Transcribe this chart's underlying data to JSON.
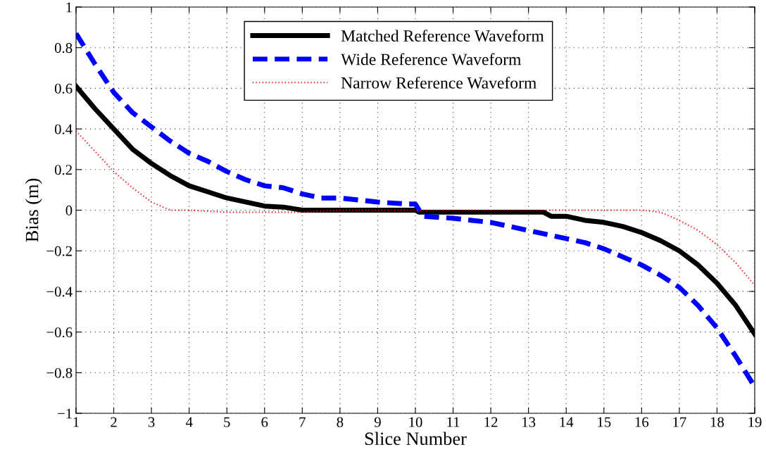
{
  "chart_data": {
    "type": "line",
    "xlabel": "Slice Number",
    "ylabel": "Bias (m)",
    "xlim": [
      1,
      19
    ],
    "xticks": [
      1,
      2,
      3,
      4,
      5,
      6,
      7,
      8,
      9,
      10,
      11,
      12,
      13,
      14,
      15,
      16,
      17,
      18,
      19
    ],
    "ylim": [
      -1,
      1
    ],
    "yticks": [
      {
        "value": -1,
        "label": "−1"
      },
      {
        "value": -0.8,
        "label": "−0.8"
      },
      {
        "value": -0.6,
        "label": "−0.6"
      },
      {
        "value": -0.4,
        "label": "−0.4"
      },
      {
        "value": -0.2,
        "label": "−0.2"
      },
      0,
      0.2,
      0.4,
      0.6,
      0.8,
      1
    ],
    "grid": true,
    "legend": "top",
    "marker": "none",
    "series": [
      {
        "name": "Matched Reference Waveform",
        "color": "#000000",
        "line_style": "solid",
        "x": [
          1,
          1.5,
          2,
          2.5,
          3,
          3.5,
          4,
          4.5,
          5,
          5.5,
          6,
          6.5,
          7,
          8,
          9,
          10,
          10.1,
          13.4,
          13.6,
          14,
          14.5,
          15,
          15.5,
          16,
          16.5,
          17,
          17.5,
          18,
          18.5,
          19
        ],
        "values": [
          0.61,
          0.5,
          0.4,
          0.3,
          0.23,
          0.17,
          0.12,
          0.09,
          0.06,
          0.04,
          0.02,
          0.015,
          0,
          0,
          0,
          0,
          -0.01,
          -0.01,
          -0.03,
          -0.03,
          -0.05,
          -0.06,
          -0.08,
          -0.11,
          -0.15,
          -0.2,
          -0.27,
          -0.36,
          -0.47,
          -0.61
        ]
      },
      {
        "name": "Wide Reference Waveform",
        "color": "#0000ff",
        "line_style": "dashed",
        "x": [
          1,
          1.5,
          2,
          2.5,
          3,
          3.5,
          4,
          4.5,
          5,
          5.5,
          6,
          6.5,
          7,
          7.5,
          8,
          8.5,
          9,
          9.8,
          10,
          10.2,
          11,
          11.5,
          12,
          12.5,
          13,
          13.5,
          14,
          14.5,
          15,
          15.5,
          16,
          16.5,
          17,
          17.5,
          18,
          18.5,
          19
        ],
        "values": [
          0.87,
          0.72,
          0.58,
          0.48,
          0.41,
          0.34,
          0.28,
          0.24,
          0.19,
          0.15,
          0.12,
          0.11,
          0.08,
          0.06,
          0.06,
          0.05,
          0.04,
          0.03,
          0.03,
          -0.03,
          -0.04,
          -0.05,
          -0.06,
          -0.08,
          -0.1,
          -0.12,
          -0.14,
          -0.16,
          -0.19,
          -0.23,
          -0.27,
          -0.32,
          -0.38,
          -0.47,
          -0.58,
          -0.72,
          -0.87
        ]
      },
      {
        "name": "Narrow Reference Waveform",
        "color": "#ff0000",
        "line_style": "dotted",
        "x": [
          1,
          1.5,
          2,
          2.5,
          3,
          3.5,
          4,
          5,
          6,
          7,
          8,
          9,
          10,
          11,
          12,
          13,
          14,
          15,
          16,
          16.5,
          17,
          17.5,
          18,
          18.5,
          19
        ],
        "values": [
          0.39,
          0.29,
          0.19,
          0.11,
          0.04,
          0,
          0,
          -0.01,
          -0.01,
          -0.01,
          0,
          0,
          0,
          0,
          0,
          0,
          0,
          0,
          0,
          -0.01,
          -0.05,
          -0.1,
          -0.17,
          -0.26,
          -0.37
        ]
      }
    ]
  }
}
